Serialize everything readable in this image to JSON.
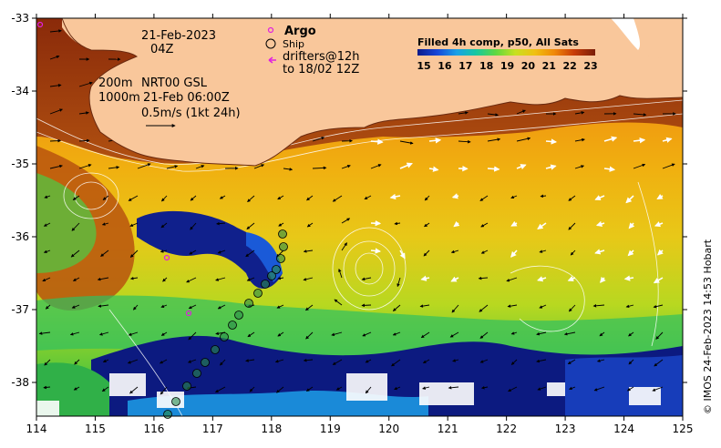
{
  "header": {
    "date": "21-Feb-2023",
    "time": "04Z",
    "depths": [
      "200m",
      "1000m"
    ],
    "product": "NRT00 GSL",
    "product_time": "21-Feb 06:00Z",
    "scale_label": "0.5m/s (1kt 24h)"
  },
  "legend": {
    "argo": "Argo",
    "ship": "Ship",
    "drifters": "drifters@12h",
    "drifters_to": "to 18/02 12Z"
  },
  "colorbar": {
    "title": "Filled 4h comp, p50, All Sats",
    "ticks": [
      "15",
      "16",
      "17",
      "18",
      "19",
      "20",
      "21",
      "22",
      "23"
    ],
    "colors": [
      "#0c1a8a",
      "#1646d8",
      "#1aa0e8",
      "#16c8a0",
      "#5ed840",
      "#c8e020",
      "#f0c010",
      "#f08808",
      "#c83c08",
      "#7a1e08"
    ]
  },
  "axes": {
    "x_ticks": [
      "114",
      "115",
      "116",
      "117",
      "118",
      "119",
      "120",
      "121",
      "122",
      "123",
      "124",
      "125"
    ],
    "y_ticks": [
      "-33",
      "-34",
      "-35",
      "-36",
      "-37",
      "-38"
    ]
  },
  "credit": "© IMOS 24-Feb-2023 14:53 Hobart",
  "colors": {
    "land": "#f9c79b",
    "frame": "#000000"
  }
}
